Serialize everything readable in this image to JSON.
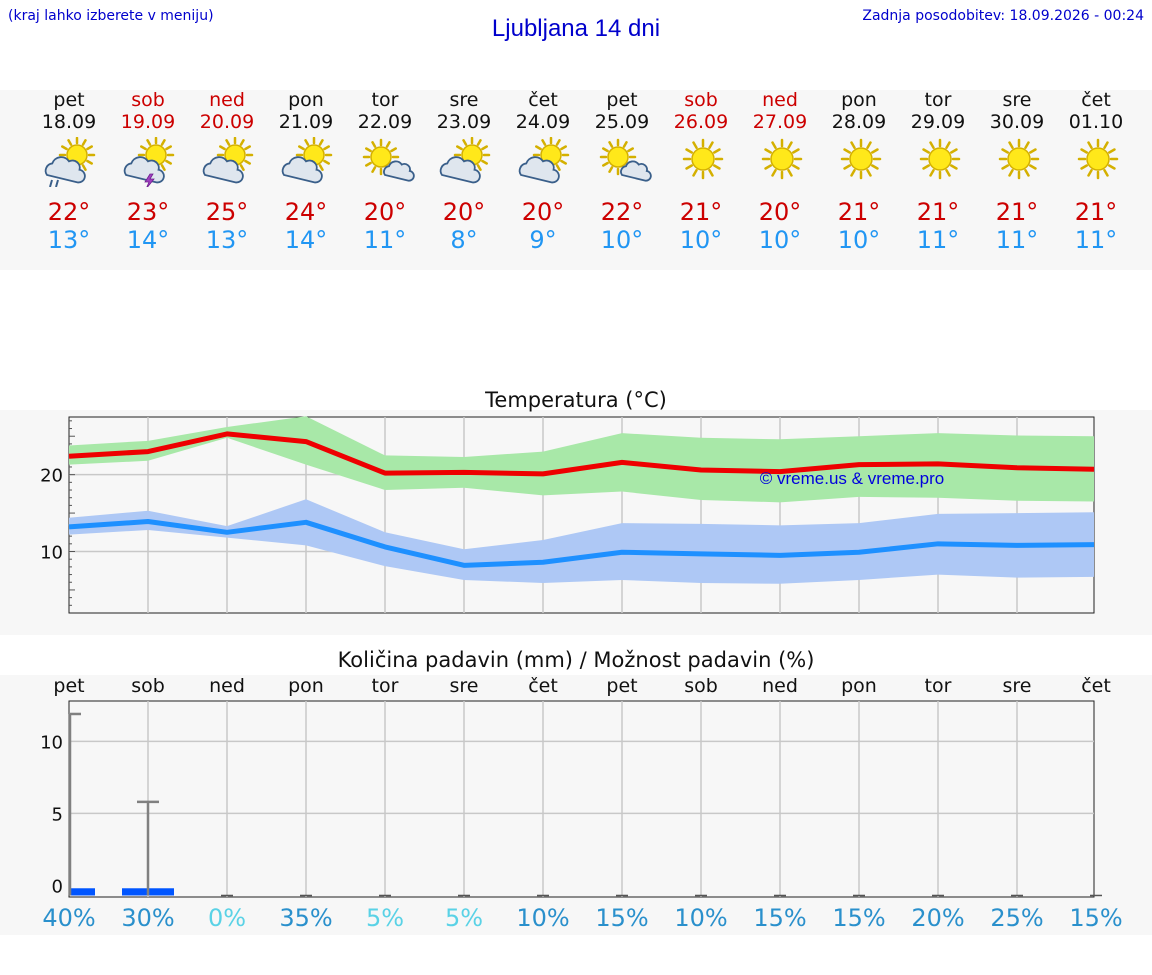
{
  "header": {
    "left_note": "(kraj lahko izberete v meniju)",
    "title": "Ljubljana 14 dni",
    "updated": "Zadnja posodobitev: 18.09.2026 - 00:24"
  },
  "days": [
    {
      "name": "pet",
      "date": "18.09",
      "max": "22°",
      "min": "13°",
      "weekend": false,
      "icon": "sun-cloud-rain-icon"
    },
    {
      "name": "sob",
      "date": "19.09",
      "max": "23°",
      "min": "14°",
      "weekend": true,
      "icon": "sun-cloud-storm-icon"
    },
    {
      "name": "ned",
      "date": "20.09",
      "max": "25°",
      "min": "13°",
      "weekend": true,
      "icon": "sun-cloud-icon"
    },
    {
      "name": "pon",
      "date": "21.09",
      "max": "24°",
      "min": "14°",
      "weekend": false,
      "icon": "sun-cloud-icon"
    },
    {
      "name": "tor",
      "date": "22.09",
      "max": "20°",
      "min": "11°",
      "weekend": false,
      "icon": "sun-small-cloud-icon"
    },
    {
      "name": "sre",
      "date": "23.09",
      "max": "20°",
      "min": "8°",
      "weekend": false,
      "icon": "sun-cloud-icon"
    },
    {
      "name": "čet",
      "date": "24.09",
      "max": "20°",
      "min": "9°",
      "weekend": false,
      "icon": "sun-cloud-icon"
    },
    {
      "name": "pet",
      "date": "25.09",
      "max": "22°",
      "min": "10°",
      "weekend": false,
      "icon": "sun-small-cloud-icon"
    },
    {
      "name": "sob",
      "date": "26.09",
      "max": "21°",
      "min": "10°",
      "weekend": true,
      "icon": "sun-icon"
    },
    {
      "name": "ned",
      "date": "27.09",
      "max": "20°",
      "min": "10°",
      "weekend": true,
      "icon": "sun-icon"
    },
    {
      "name": "pon",
      "date": "28.09",
      "max": "21°",
      "min": "10°",
      "weekend": false,
      "icon": "sun-icon"
    },
    {
      "name": "tor",
      "date": "29.09",
      "max": "21°",
      "min": "11°",
      "weekend": false,
      "icon": "sun-icon"
    },
    {
      "name": "sre",
      "date": "30.09",
      "max": "21°",
      "min": "11°",
      "weekend": false,
      "icon": "sun-icon"
    },
    {
      "name": "čet",
      "date": "01.10",
      "max": "21°",
      "min": "11°",
      "weekend": false,
      "icon": "sun-icon"
    }
  ],
  "colors": {
    "max": "#ee0000",
    "min": "#1e90ff",
    "max_band": "#a8e8a8",
    "min_band": "#aec8f5",
    "bar": "#0055ff"
  },
  "chart_data": [
    {
      "type": "line",
      "title": "Temperatura (°C)",
      "watermark": "© vreme.us & vreme.pro",
      "ylim": [
        2,
        27.5
      ],
      "yticks": [
        "10",
        "20"
      ],
      "x": [
        "18.09",
        "19.09",
        "20.09",
        "21.09",
        "22.09",
        "23.09",
        "24.09",
        "25.09",
        "26.09",
        "27.09",
        "28.09",
        "29.09",
        "30.09",
        "01.10"
      ],
      "series": [
        {
          "values": [
            22.4,
            23.0,
            25.3,
            24.3,
            20.2,
            20.3,
            20.1,
            21.6,
            20.6,
            20.4,
            21.3,
            21.4,
            20.9,
            20.7
          ],
          "band_low": [
            21.3,
            21.8,
            24.8,
            21.3,
            18.0,
            18.3,
            17.3,
            17.8,
            16.7,
            16.4,
            17.1,
            17.0,
            16.6,
            16.5
          ],
          "band_high": [
            23.8,
            24.4,
            26.2,
            27.6,
            22.5,
            22.3,
            23.0,
            25.4,
            24.8,
            24.6,
            25.0,
            25.4,
            25.1,
            25.0
          ]
        },
        {
          "values": [
            13.2,
            13.9,
            12.5,
            13.8,
            10.6,
            8.2,
            8.6,
            9.9,
            9.7,
            9.5,
            9.9,
            11.0,
            10.8,
            10.9
          ],
          "band_low": [
            12.2,
            12.8,
            11.8,
            10.8,
            8.1,
            6.3,
            5.9,
            6.3,
            5.9,
            5.8,
            6.3,
            7.0,
            6.6,
            6.7
          ],
          "band_high": [
            14.4,
            15.3,
            13.3,
            16.8,
            12.5,
            10.3,
            11.5,
            13.7,
            13.6,
            13.4,
            13.7,
            14.9,
            15.0,
            15.1
          ]
        }
      ]
    },
    {
      "type": "bar",
      "title": "Količina padavin (mm) / Možnost padavin (%)",
      "categories": [
        "pet",
        "sob",
        "ned",
        "pon",
        "tor",
        "sre",
        "čet",
        "pet",
        "sob",
        "ned",
        "pon",
        "tor",
        "sre",
        "čet"
      ],
      "ylim": [
        -0.8,
        12.8
      ],
      "yticks": [
        "0",
        "5",
        "10"
      ],
      "values": [
        0.5,
        0.5,
        0,
        0,
        0,
        0,
        0,
        0,
        0,
        0,
        0,
        0,
        0,
        0
      ],
      "error_high": [
        11.9,
        5.8,
        0,
        0,
        0,
        0,
        0,
        0,
        0,
        0,
        0,
        0,
        0,
        0
      ],
      "chance": [
        "40%",
        "30%",
        "0%",
        "35%",
        "5%",
        "5%",
        "10%",
        "15%",
        "10%",
        "15%",
        "15%",
        "20%",
        "25%",
        "15%"
      ],
      "chance_values": [
        40,
        30,
        0,
        35,
        5,
        5,
        10,
        15,
        10,
        15,
        15,
        20,
        25,
        15
      ]
    }
  ]
}
